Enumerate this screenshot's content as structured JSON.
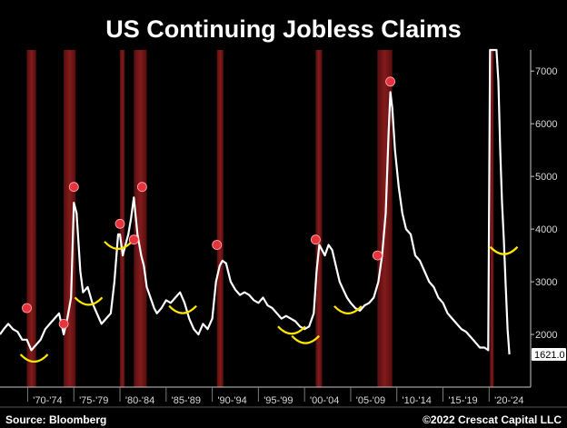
{
  "chart_data": {
    "type": "line",
    "title": "US Continuing Jobless Claims",
    "source": "Source: Bloomberg",
    "credit": "©2022 Crescat Capital LLC",
    "xlabel": "",
    "ylabel": "",
    "xlim": [
      1967.0,
      2024.5
    ],
    "ylim": [
      1000,
      7400
    ],
    "y_ticks": [
      2000,
      3000,
      4000,
      5000,
      6000,
      7000
    ],
    "x_tick_labels": [
      "'70-'74",
      "'75-'79",
      "'80-'84",
      "'85-'89",
      "'90-'94",
      "'95-'99",
      "'00-'04",
      "'05-'09",
      "'10-'14",
      "'15-'19",
      "'20-'24"
    ],
    "x_tick_positions": [
      1970,
      1975,
      1980,
      1985,
      1990,
      1995,
      2000,
      2005,
      2010,
      2015,
      2020
    ],
    "last_value_label": "1621.0",
    "grid": false,
    "recessions": [
      {
        "start": 1969.9,
        "end": 1970.9
      },
      {
        "start": 1973.9,
        "end": 1975.2
      },
      {
        "start": 1980.0,
        "end": 1980.5
      },
      {
        "start": 1981.5,
        "end": 1982.9
      },
      {
        "start": 1990.5,
        "end": 1991.2
      },
      {
        "start": 2001.2,
        "end": 2001.9
      },
      {
        "start": 2007.9,
        "end": 2009.5
      },
      {
        "start": 2020.1,
        "end": 2020.4
      }
    ],
    "series": [
      {
        "color": "#ffffff",
        "x": [
          1967.0,
          1967.4,
          1967.9,
          1968.4,
          1968.9,
          1969.4,
          1969.9,
          1970.4,
          1970.9,
          1971.4,
          1971.9,
          1972.4,
          1972.9,
          1973.4,
          1973.9,
          1974.3,
          1974.7,
          1975.0,
          1975.3,
          1975.7,
          1976.0,
          1976.5,
          1977.0,
          1977.5,
          1978.0,
          1978.5,
          1979.0,
          1979.4,
          1979.8,
          1980.0,
          1980.3,
          1980.6,
          1980.9,
          1981.2,
          1981.5,
          1981.9,
          1982.3,
          1982.6,
          1982.9,
          1983.3,
          1983.7,
          1984.0,
          1984.5,
          1985.0,
          1985.5,
          1986.0,
          1986.5,
          1987.0,
          1987.5,
          1988.0,
          1988.5,
          1989.0,
          1989.5,
          1990.0,
          1990.4,
          1990.8,
          1991.1,
          1991.5,
          1992.0,
          1992.5,
          1993.0,
          1993.5,
          1994.0,
          1994.5,
          1995.0,
          1995.5,
          1996.0,
          1996.5,
          1997.0,
          1997.5,
          1998.0,
          1998.5,
          1999.0,
          1999.5,
          2000.0,
          2000.5,
          2001.0,
          2001.3,
          2001.6,
          2001.9,
          2002.2,
          2002.6,
          2003.0,
          2003.4,
          2003.8,
          2004.2,
          2004.6,
          2005.0,
          2005.5,
          2006.0,
          2006.5,
          2007.0,
          2007.5,
          2008.0,
          2008.4,
          2008.8,
          2009.1,
          2009.3,
          2009.5,
          2009.8,
          2010.2,
          2010.6,
          2011.0,
          2011.5,
          2012.0,
          2012.5,
          2013.0,
          2013.5,
          2014.0,
          2014.5,
          2015.0,
          2015.5,
          2016.0,
          2016.5,
          2017.0,
          2017.5,
          2018.0,
          2018.5,
          2019.0,
          2019.5,
          2019.9,
          2020.1,
          2020.25,
          2020.35,
          2020.45,
          2020.6,
          2020.8,
          2021.0,
          2021.2,
          2021.4,
          2021.6,
          2021.8,
          2022.0,
          2022.2
        ],
        "y": [
          2000,
          2100,
          2200,
          2100,
          2050,
          1900,
          1900,
          1700,
          1800,
          1900,
          2100,
          2200,
          2300,
          2400,
          2000,
          2300,
          2700,
          4500,
          4300,
          3200,
          2800,
          2900,
          2600,
          2400,
          2200,
          2300,
          2400,
          3000,
          3900,
          3900,
          3500,
          3700,
          3900,
          4200,
          4600,
          3900,
          3500,
          3300,
          2900,
          2700,
          2500,
          2400,
          2500,
          2650,
          2600,
          2700,
          2800,
          2600,
          2300,
          2100,
          2000,
          2200,
          2100,
          2300,
          3000,
          3300,
          3400,
          3350,
          3000,
          2850,
          2750,
          2800,
          2750,
          2650,
          2600,
          2700,
          2550,
          2500,
          2400,
          2300,
          2350,
          2300,
          2250,
          2150,
          2100,
          2150,
          2400,
          3200,
          3700,
          3600,
          3500,
          3700,
          3600,
          3300,
          3000,
          2850,
          2700,
          2600,
          2500,
          2450,
          2550,
          2600,
          2700,
          3000,
          3500,
          4300,
          5800,
          6600,
          6300,
          5500,
          4800,
          4300,
          4000,
          3900,
          3500,
          3400,
          3200,
          3000,
          2900,
          2700,
          2600,
          2400,
          2300,
          2200,
          2100,
          2050,
          1950,
          1850,
          1750,
          1750,
          1700,
          7400,
          7400,
          7400,
          7400,
          7400,
          7400,
          6800,
          5500,
          4500,
          3800,
          2900,
          2100,
          1621
        ]
      }
    ],
    "trough_markers": [
      1970.7,
      1976.6,
      1979.8,
      1986.8,
      1998.6,
      2000.1,
      2004.7,
      2021.6
    ],
    "recession_start_markers": [
      {
        "x": 1969.9,
        "y": 2500
      },
      {
        "x": 1973.9,
        "y": 2200
      },
      {
        "x": 1975.0,
        "y": 4800
      },
      {
        "x": 1980.0,
        "y": 4100
      },
      {
        "x": 1981.5,
        "y": 3800
      },
      {
        "x": 1982.4,
        "y": 4800
      },
      {
        "x": 1990.5,
        "y": 3700
      },
      {
        "x": 2001.2,
        "y": 3800
      },
      {
        "x": 2007.9,
        "y": 3500
      },
      {
        "x": 2009.3,
        "y": 6800
      }
    ]
  }
}
